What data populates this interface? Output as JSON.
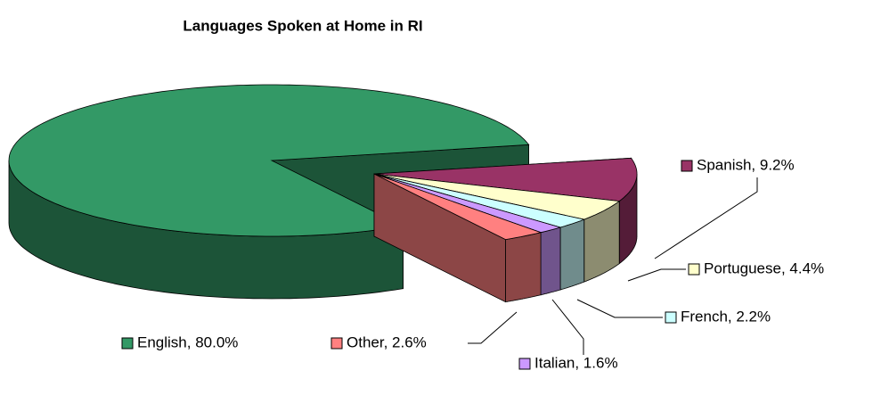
{
  "chart_data": {
    "type": "pie3d",
    "title": "Languages Spoken at Home in RI",
    "values": [
      9.2,
      4.4,
      2.2,
      1.6,
      2.6,
      80.0
    ],
    "value_labels": [
      "Spanish, 9.2%",
      "Portuguese, 4.4%",
      "French, 2.2%",
      "Italian, 1.6%",
      "Other, 2.6%",
      "English, 80.0%"
    ],
    "colors": [
      "#993366",
      "#ffffcc",
      "#ccffff",
      "#cc99ff",
      "#ff8080",
      "#339966"
    ]
  }
}
